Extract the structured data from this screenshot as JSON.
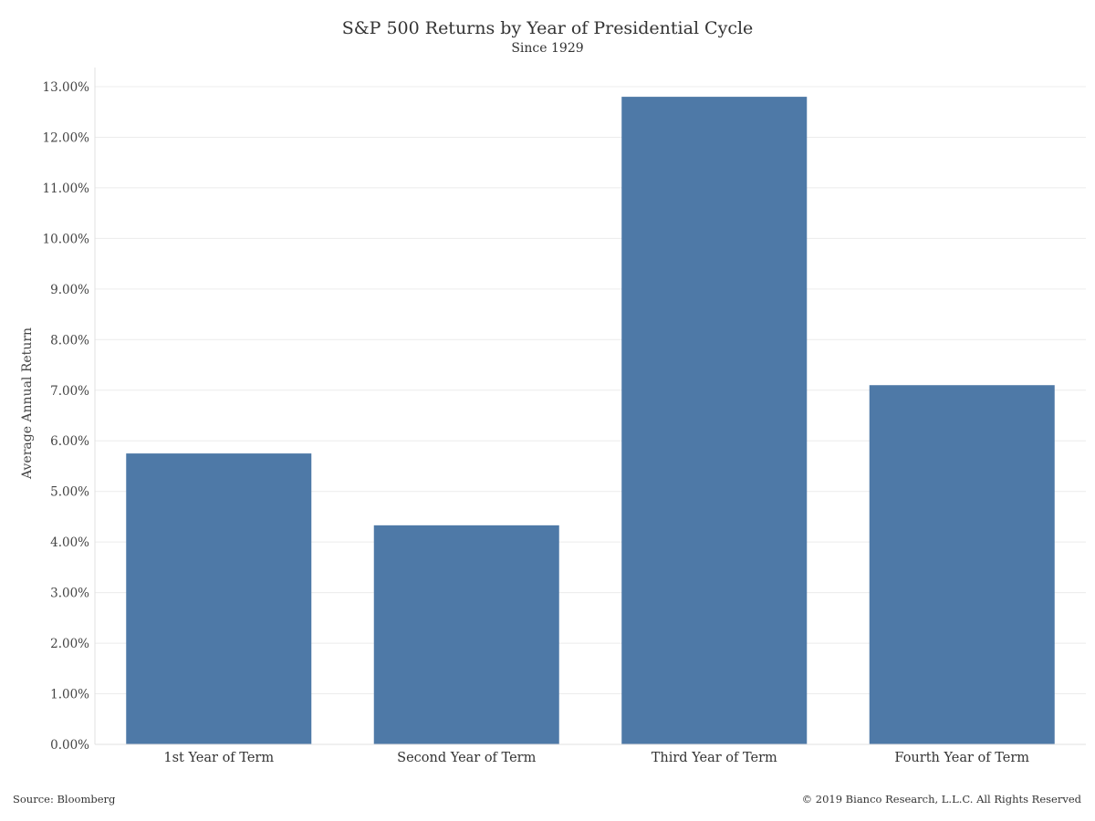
{
  "chart_data": {
    "type": "bar",
    "title": "S&P 500 Returns by Year of Presidential Cycle",
    "subtitle": "Since 1929",
    "xlabel": "",
    "ylabel": "Average Annual Return",
    "categories": [
      "1st Year of Term",
      "Second Year of Term",
      "Third Year of Term",
      "Fourth Year of Term"
    ],
    "values": [
      5.75,
      4.33,
      12.8,
      7.1
    ],
    "ylim": [
      0,
      13
    ],
    "yticks": [
      0,
      1,
      2,
      3,
      4,
      5,
      6,
      7,
      8,
      9,
      10,
      11,
      12,
      13
    ],
    "ytick_labels": [
      "0.00%",
      "1.00%",
      "2.00%",
      "3.00%",
      "4.00%",
      "5.00%",
      "6.00%",
      "7.00%",
      "8.00%",
      "9.00%",
      "10.00%",
      "11.00%",
      "12.00%",
      "13.00%"
    ],
    "grid": true,
    "legend": "none",
    "bar_color": "#4e79a7"
  },
  "footer": {
    "source": "Source: Bloomberg",
    "copyright": "© 2019 Bianco Research, L.L.C. All Rights Reserved"
  }
}
